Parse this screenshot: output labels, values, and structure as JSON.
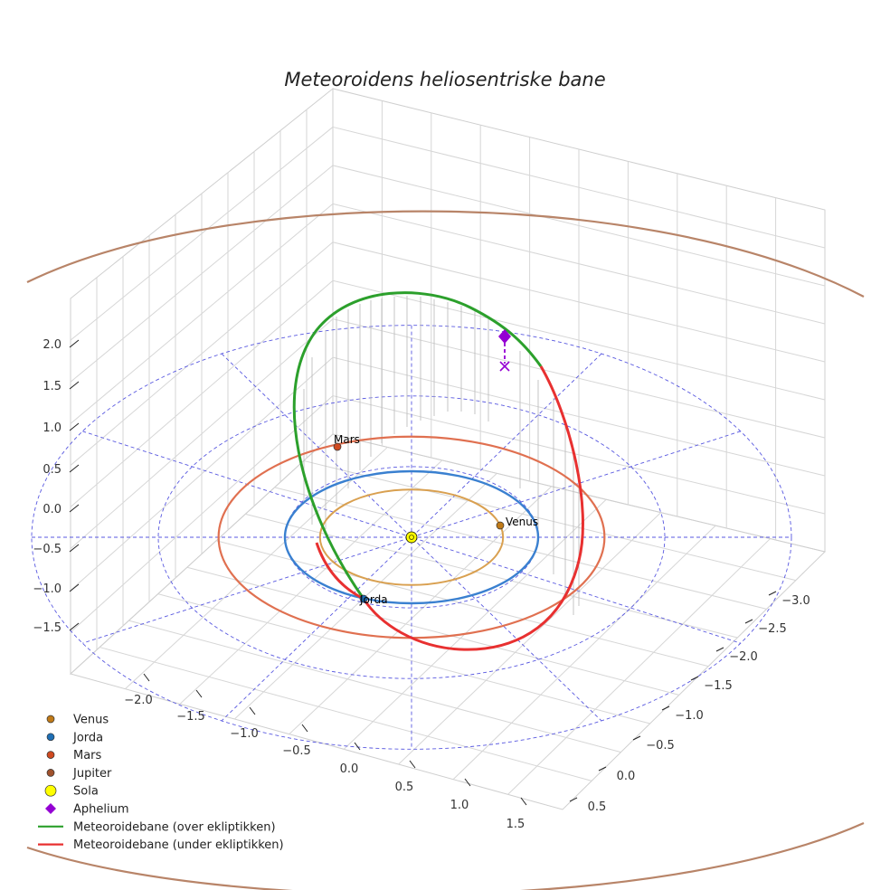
{
  "chart_data": {
    "type": "3d-line",
    "title": "Meteoroidens heliosentriske bane",
    "axes": {
      "x": {
        "ticks": [
          "−3.0",
          "−2.5",
          "−2.0",
          "−1.5",
          "−1.0",
          "−0.5",
          "0.0",
          "0.5"
        ]
      },
      "y": {
        "ticks": [
          "−2.0",
          "−1.5",
          "−1.0",
          "−0.5",
          "0.0",
          "0.5",
          "1.0",
          "1.5"
        ]
      },
      "z": {
        "ticks": [
          "2.0",
          "1.5",
          "1.0",
          "0.5",
          "0.0",
          "−0.5",
          "−1.0",
          "−1.5"
        ]
      }
    },
    "grid": true,
    "ecliptic_reference_circles_au": [
      1,
      2,
      3
    ],
    "planets": [
      {
        "name": "Venus",
        "orbit_radius_au": 0.723,
        "color": "#d9a050",
        "marker_color": "#c07a18",
        "label": "Venus"
      },
      {
        "name": "Jorda",
        "orbit_radius_au": 1.0,
        "color": "#3a80d0",
        "marker_color": "#1f6fb5",
        "label": "Jorda"
      },
      {
        "name": "Mars",
        "orbit_radius_au": 1.524,
        "color": "#e07050",
        "marker_color": "#d04a20",
        "label": "Mars"
      },
      {
        "name": "Jupiter",
        "orbit_radius_au": 5.2,
        "color": "#b88468",
        "marker_color": "#a0522d",
        "label": ""
      }
    ],
    "sun": {
      "name": "Sola",
      "color": "#ffff00"
    },
    "meteoroid_orbit": {
      "above_label": "Meteoroidebane (over ekliptikken)",
      "below_label": "Meteoroidebane (under ekliptikken)",
      "above_color": "#2ca02c",
      "below_color": "#e83030"
    },
    "aphelion": {
      "label": "Aphelium",
      "color": "#9400d3"
    },
    "legend": [
      {
        "label": "Venus",
        "kind": "dot",
        "color": "#c07a18"
      },
      {
        "label": "Jorda",
        "kind": "dot",
        "color": "#1f6fb5"
      },
      {
        "label": "Mars",
        "kind": "dot",
        "color": "#d04a20"
      },
      {
        "label": "Jupiter",
        "kind": "dot",
        "color": "#a0522d"
      },
      {
        "label": "Sola",
        "kind": "bigdot",
        "color": "#ffff00"
      },
      {
        "label": "Aphelium",
        "kind": "diamond",
        "color": "#9400d3"
      },
      {
        "label": "Meteoroidebane (over ekliptikken)",
        "kind": "line",
        "color": "#2ca02c"
      },
      {
        "label": "Meteoroidebane (under ekliptikken)",
        "kind": "line",
        "color": "#e83030"
      }
    ]
  }
}
